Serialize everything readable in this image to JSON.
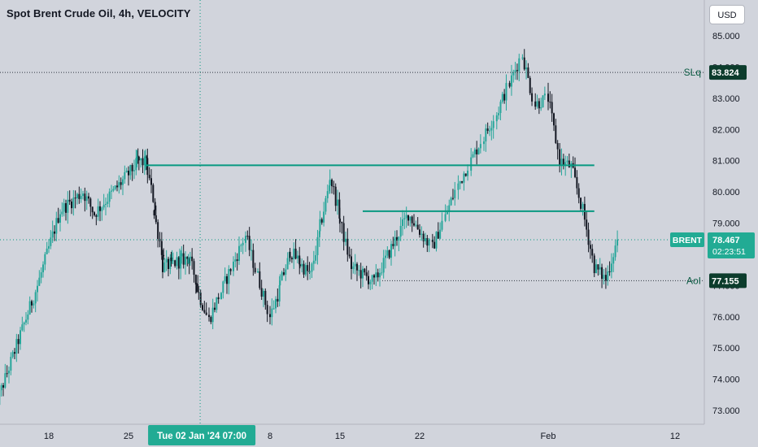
{
  "header": {
    "title": "Spot Brent Crude Oil, 4h, VELOCITY"
  },
  "currency_button": {
    "label": "USD"
  },
  "crosshair": {
    "date_label": "Tue 02 Jan '24",
    "time_label": "07:00",
    "price": 78.467
  },
  "price_badges": {
    "current": {
      "symbol": "BRENT",
      "price": "78.467",
      "countdown": "02:23:51"
    },
    "slq": {
      "label": "SLq",
      "price": "83.824"
    },
    "aol": {
      "label": "AoI",
      "price": "77.155"
    }
  },
  "colors": {
    "background": "#d1d4dc",
    "up_candle": "#26a69a",
    "down_candle": "#131722",
    "level_line": "#089981",
    "badge_dark": "#0c3c2c",
    "badge_green": "#22ab94"
  },
  "chart_data": {
    "type": "candlestick",
    "title": "Spot Brent Crude Oil, 4h, VELOCITY",
    "y_ticks": [
      "85.000",
      "84.000",
      "83.000",
      "82.000",
      "81.000",
      "80.000",
      "79.000",
      "78.000",
      "77.000",
      "76.000",
      "75.000",
      "74.000",
      "73.000"
    ],
    "ylim": [
      72.58,
      85.68
    ],
    "x_ticks": [
      {
        "label": "18",
        "date": "2023-12-18"
      },
      {
        "label": "25",
        "date": "2023-12-25"
      },
      {
        "label": "8",
        "date": "2024-01-08"
      },
      {
        "label": "15",
        "date": "2024-01-15"
      },
      {
        "label": "22",
        "date": "2024-01-22"
      },
      {
        "label": "Feb",
        "date": "2024-02-01"
      },
      {
        "label": "12",
        "date": "2024-02-12"
      }
    ],
    "horizontal_levels": [
      {
        "price": 80.85,
        "from": "2023-12-27",
        "to": "2024-02-05",
        "style": "solid"
      },
      {
        "price": 79.38,
        "from": "2024-01-17",
        "to": "2024-02-05",
        "style": "solid"
      },
      {
        "price": 83.824,
        "label": "SLq",
        "style": "dotted"
      },
      {
        "price": 77.155,
        "label": "AoI",
        "style": "dotted"
      }
    ],
    "grid": false,
    "key_points": [
      {
        "date": "2023-12-13",
        "price": 72.8
      },
      {
        "date": "2023-12-17",
        "price": 77.0
      },
      {
        "date": "2023-12-19",
        "price": 79.4
      },
      {
        "date": "2023-12-21",
        "price": 80.0
      },
      {
        "date": "2023-12-22",
        "price": 79.3
      },
      {
        "date": "2023-12-26",
        "price": 81.0
      },
      {
        "date": "2023-12-27",
        "price": 80.9
      },
      {
        "date": "2023-12-29",
        "price": 77.6
      },
      {
        "date": "2024-01-01",
        "price": 77.9
      },
      {
        "date": "2024-01-03",
        "price": 75.9
      },
      {
        "date": "2024-01-06",
        "price": 78.6
      },
      {
        "date": "2024-01-08",
        "price": 76.0
      },
      {
        "date": "2024-01-10",
        "price": 78.1
      },
      {
        "date": "2024-01-12",
        "price": 77.3
      },
      {
        "date": "2024-01-14",
        "price": 80.5
      },
      {
        "date": "2024-01-16",
        "price": 77.6
      },
      {
        "date": "2024-01-18",
        "price": 77.1
      },
      {
        "date": "2024-01-21",
        "price": 79.3
      },
      {
        "date": "2024-01-23",
        "price": 78.2
      },
      {
        "date": "2024-01-25",
        "price": 80.2
      },
      {
        "date": "2024-01-26",
        "price": 81.0
      },
      {
        "date": "2024-01-28",
        "price": 82.5
      },
      {
        "date": "2024-01-30",
        "price": 84.4
      },
      {
        "date": "2024-01-31",
        "price": 82.8
      },
      {
        "date": "2024-02-01",
        "price": 83.0
      },
      {
        "date": "2024-02-02",
        "price": 81.0
      },
      {
        "date": "2024-02-03",
        "price": 80.8
      },
      {
        "date": "2024-02-04",
        "price": 79.4
      },
      {
        "date": "2024-02-05",
        "price": 77.6
      },
      {
        "date": "2024-02-06",
        "price": 77.2
      },
      {
        "date": "2024-02-07",
        "price": 78.467
      }
    ]
  }
}
